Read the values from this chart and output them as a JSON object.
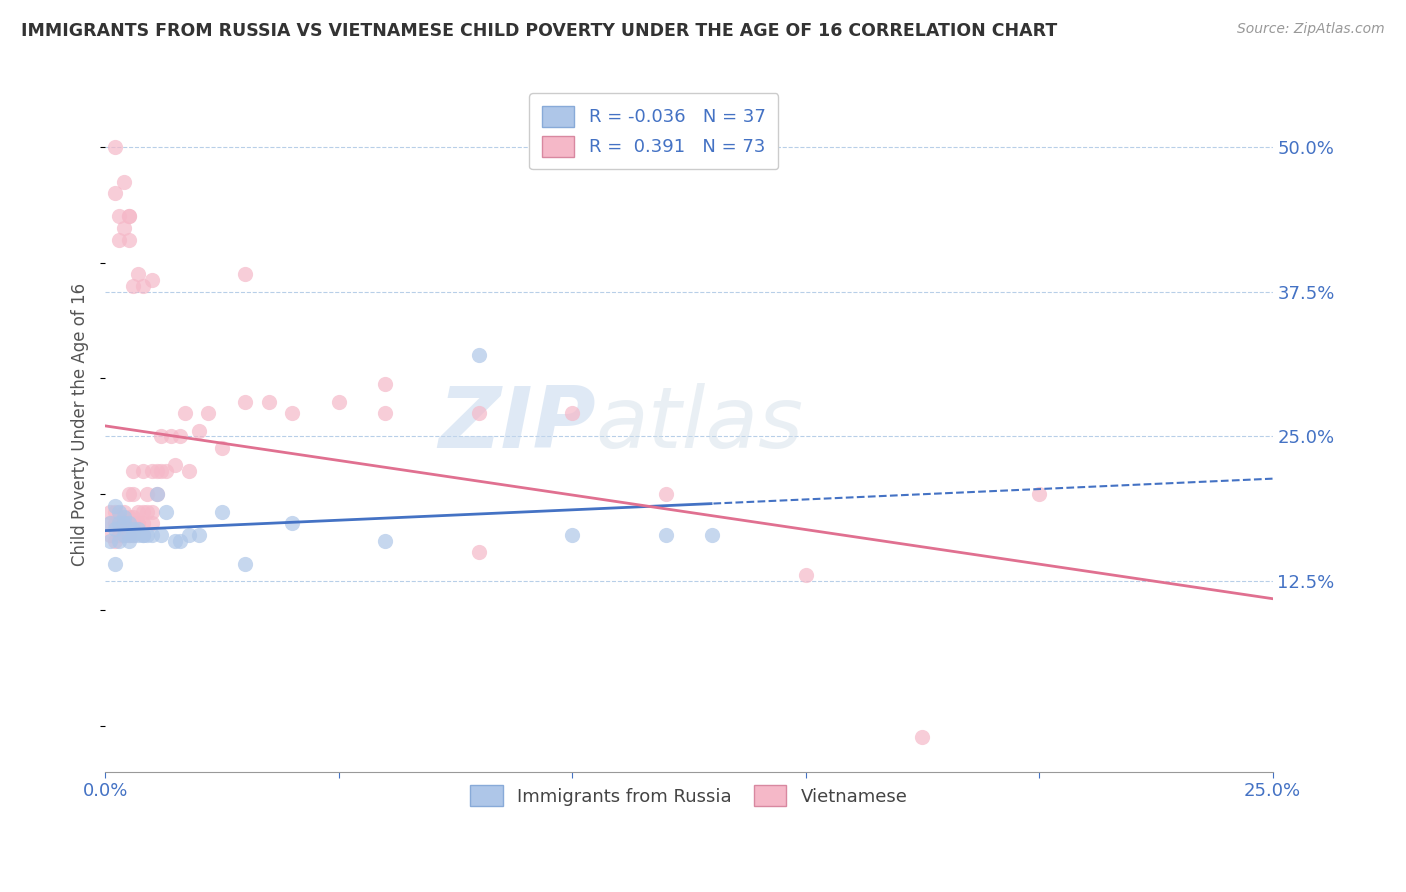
{
  "title": "IMMIGRANTS FROM RUSSIA VS VIETNAMESE CHILD POVERTY UNDER THE AGE OF 16 CORRELATION CHART",
  "source": "Source: ZipAtlas.com",
  "ylabel": "Child Poverty Under the Age of 16",
  "legend_r1": "R = -0.036",
  "legend_n1": "N = 37",
  "legend_r2": "R =  0.391",
  "legend_n2": "N = 73",
  "xlim": [
    0.0,
    0.25
  ],
  "ylim": [
    -0.04,
    0.56
  ],
  "y_ticks_right": [
    0.125,
    0.25,
    0.375,
    0.5
  ],
  "y_tick_labels_right": [
    "12.5%",
    "25.0%",
    "37.5%",
    "50.0%"
  ],
  "color_russia": "#aec6e8",
  "color_vietnam": "#f5b8c8",
  "color_russia_line": "#4472c4",
  "color_vietnam_line": "#e07090",
  "watermark": "ZIPatlas",
  "russia_x": [
    0.001,
    0.001,
    0.002,
    0.002,
    0.002,
    0.003,
    0.003,
    0.003,
    0.004,
    0.004,
    0.004,
    0.005,
    0.005,
    0.005,
    0.006,
    0.006,
    0.007,
    0.007,
    0.008,
    0.008,
    0.009,
    0.01,
    0.011,
    0.012,
    0.013,
    0.015,
    0.016,
    0.018,
    0.02,
    0.025,
    0.03,
    0.04,
    0.06,
    0.08,
    0.1,
    0.12,
    0.13
  ],
  "russia_y": [
    0.175,
    0.16,
    0.14,
    0.17,
    0.19,
    0.16,
    0.175,
    0.185,
    0.175,
    0.165,
    0.18,
    0.16,
    0.175,
    0.165,
    0.165,
    0.17,
    0.17,
    0.165,
    0.165,
    0.165,
    0.165,
    0.165,
    0.2,
    0.165,
    0.185,
    0.16,
    0.16,
    0.165,
    0.165,
    0.185,
    0.14,
    0.175,
    0.16,
    0.32,
    0.165,
    0.165,
    0.165
  ],
  "vietnam_x": [
    0.001,
    0.001,
    0.001,
    0.002,
    0.002,
    0.002,
    0.003,
    0.003,
    0.003,
    0.004,
    0.004,
    0.004,
    0.004,
    0.005,
    0.005,
    0.005,
    0.005,
    0.006,
    0.006,
    0.006,
    0.006,
    0.006,
    0.007,
    0.007,
    0.007,
    0.008,
    0.008,
    0.008,
    0.009,
    0.009,
    0.01,
    0.01,
    0.01,
    0.011,
    0.011,
    0.012,
    0.012,
    0.013,
    0.014,
    0.015,
    0.016,
    0.017,
    0.018,
    0.02,
    0.022,
    0.025,
    0.03,
    0.035,
    0.04,
    0.05,
    0.06,
    0.08,
    0.1,
    0.12,
    0.15,
    0.175,
    0.2,
    0.03,
    0.06,
    0.08,
    0.01,
    0.005,
    0.002,
    0.002,
    0.003,
    0.003,
    0.004,
    0.004,
    0.005,
    0.005,
    0.006,
    0.007,
    0.008
  ],
  "vietnam_y": [
    0.175,
    0.165,
    0.185,
    0.175,
    0.185,
    0.16,
    0.165,
    0.18,
    0.175,
    0.17,
    0.175,
    0.165,
    0.185,
    0.175,
    0.165,
    0.18,
    0.2,
    0.175,
    0.165,
    0.18,
    0.2,
    0.22,
    0.175,
    0.185,
    0.175,
    0.185,
    0.175,
    0.22,
    0.185,
    0.2,
    0.185,
    0.22,
    0.175,
    0.22,
    0.2,
    0.22,
    0.25,
    0.22,
    0.25,
    0.225,
    0.25,
    0.27,
    0.22,
    0.255,
    0.27,
    0.24,
    0.28,
    0.28,
    0.27,
    0.28,
    0.295,
    0.27,
    0.27,
    0.2,
    0.13,
    -0.01,
    0.2,
    0.39,
    0.27,
    0.15,
    0.385,
    0.44,
    0.46,
    0.5,
    0.42,
    0.44,
    0.43,
    0.47,
    0.44,
    0.42,
    0.38,
    0.39,
    0.38
  ]
}
